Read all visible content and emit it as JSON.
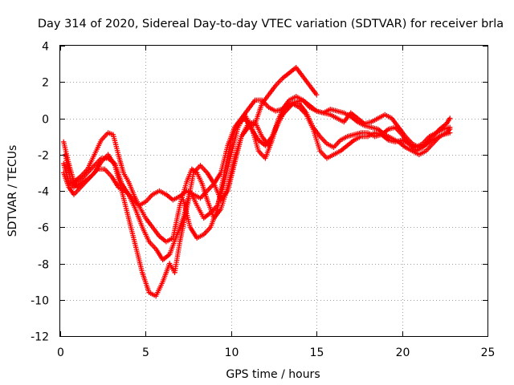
{
  "chart_data": {
    "type": "scatter",
    "title": "Day 314 of 2020, Sidereal Day-to-day VTEC variation (SDTVAR) for receiver brla",
    "xlabel": "GPS time / hours",
    "ylabel": "SDTVAR / TECUs",
    "xlim": [
      0,
      25
    ],
    "ylim": [
      -12,
      4
    ],
    "x_ticks": [
      0,
      5,
      10,
      15,
      20,
      25
    ],
    "x_tick_labels": [
      "0",
      "5",
      "10",
      "15",
      "20",
      "25"
    ],
    "y_ticks": [
      4,
      2,
      0,
      -2,
      -4,
      -6,
      -8,
      -10,
      -12
    ],
    "y_tick_labels": [
      "4",
      "2",
      "0",
      "-2",
      "-4",
      "-6",
      "-8",
      "-10",
      "-12"
    ],
    "grid": true,
    "marker": "+",
    "colors": {
      "series": "#ff0000",
      "grid": "#a0a0a0",
      "axis": "#000000"
    },
    "series": [
      {
        "x": [
          0.2,
          0.5,
          0.8,
          1.2,
          1.6,
          2.0,
          2.4,
          2.8,
          3.1,
          3.4,
          3.7,
          4.0,
          4.3,
          4.6,
          5.0,
          5.4,
          5.8,
          6.2,
          6.6,
          7.0,
          7.4,
          7.7,
          8.0,
          8.3,
          8.6,
          9.0,
          9.4,
          9.8,
          10.2,
          10.6,
          11.0,
          11.4,
          11.8,
          12.2,
          12.6,
          13.0,
          13.4,
          13.8,
          14.2,
          14.6,
          15.0
        ],
        "y": [
          -1.3,
          -2.5,
          -3.5,
          -3.2,
          -2.8,
          -2.0,
          -1.2,
          -0.8,
          -0.9,
          -2.0,
          -3.0,
          -3.5,
          -4.2,
          -4.8,
          -5.5,
          -6.0,
          -6.5,
          -6.8,
          -6.6,
          -4.8,
          -3.5,
          -2.8,
          -3.0,
          -3.6,
          -4.5,
          -5.5,
          -5.0,
          -3.8,
          -2.2,
          -1.0,
          -0.5,
          -0.3,
          0.8,
          1.3,
          1.8,
          2.2,
          2.5,
          2.8,
          2.3,
          1.8,
          1.3
        ]
      },
      {
        "x": [
          0.2,
          0.5,
          0.8,
          1.2,
          1.6,
          2.0,
          2.4,
          2.8,
          3.2,
          3.6,
          4.0,
          4.4,
          4.8,
          5.2,
          5.6,
          6.0,
          6.4,
          6.7,
          7.0,
          7.4,
          7.8,
          8.2,
          8.6,
          9.0,
          9.4,
          9.8,
          10.2,
          10.6,
          11.0,
          11.4,
          11.8,
          12.2,
          12.6,
          13.0,
          13.4,
          13.8,
          14.2,
          14.6,
          15.0,
          15.4,
          15.8,
          16.2,
          16.6,
          17.0,
          17.4,
          17.8,
          18.2,
          18.6,
          19.0,
          19.4,
          19.8,
          20.2,
          20.6,
          21.0,
          21.4,
          21.8,
          22.2,
          22.6,
          22.8
        ],
        "y": [
          -3.0,
          -3.8,
          -4.2,
          -3.8,
          -3.4,
          -3.0,
          -2.4,
          -2.0,
          -2.6,
          -4.0,
          -5.5,
          -7.0,
          -8.5,
          -9.6,
          -9.8,
          -9.0,
          -8.0,
          -8.5,
          -6.8,
          -5.0,
          -3.0,
          -2.6,
          -3.0,
          -3.6,
          -4.5,
          -4.0,
          -2.5,
          -1.0,
          -0.3,
          -0.2,
          -1.0,
          -1.5,
          -0.5,
          0.5,
          1.0,
          1.2,
          1.0,
          0.6,
          0.4,
          0.3,
          0.2,
          0.0,
          -0.2,
          0.3,
          0.0,
          -0.3,
          -0.2,
          0.0,
          0.2,
          0.0,
          -0.5,
          -1.0,
          -1.4,
          -1.6,
          -1.4,
          -1.0,
          -0.6,
          -0.3,
          0.0
        ]
      },
      {
        "x": [
          0.2,
          0.5,
          0.8,
          1.2,
          1.6,
          2.0,
          2.4,
          2.8,
          3.2,
          3.6,
          4.0,
          4.4,
          4.8,
          5.2,
          5.6,
          6.0,
          6.4,
          6.8,
          7.2,
          7.6,
          8.0,
          8.4,
          8.8,
          9.2,
          9.6,
          10.0,
          10.4,
          10.8,
          11.2,
          11.6,
          12.0,
          12.4,
          12.8,
          13.2,
          13.6,
          14.0,
          14.4,
          14.8,
          15.2,
          15.6,
          16.0,
          16.4,
          16.8,
          17.2,
          17.6,
          18.0,
          18.4,
          18.8,
          19.2,
          19.6,
          20.0,
          20.4,
          20.8,
          21.2,
          21.6,
          22.0,
          22.4,
          22.8
        ],
        "y": [
          -2.5,
          -3.5,
          -3.8,
          -3.4,
          -3.0,
          -2.6,
          -2.2,
          -2.2,
          -2.5,
          -3.6,
          -4.2,
          -5.0,
          -6.0,
          -6.8,
          -7.2,
          -7.8,
          -7.5,
          -6.5,
          -5.5,
          -4.0,
          -4.8,
          -5.5,
          -5.2,
          -4.8,
          -3.5,
          -2.0,
          -0.5,
          0.2,
          -0.5,
          -1.8,
          -2.2,
          -1.2,
          0.0,
          0.4,
          0.8,
          0.6,
          0.2,
          -0.6,
          -1.8,
          -2.2,
          -2.0,
          -1.8,
          -1.5,
          -1.2,
          -1.0,
          -1.0,
          -0.8,
          -0.9,
          -1.2,
          -1.3,
          -1.2,
          -1.4,
          -1.6,
          -1.4,
          -1.0,
          -0.8,
          -0.6,
          -0.5
        ]
      },
      {
        "x": [
          0.3,
          0.6,
          1.0,
          1.4,
          1.8,
          2.2,
          2.6,
          3.0,
          3.4,
          3.8,
          4.2,
          4.6,
          5.0,
          5.4,
          5.8,
          6.2,
          6.6,
          7.0,
          7.4,
          7.8,
          8.2,
          8.6,
          9.0,
          9.4,
          9.8,
          10.2,
          10.6,
          11.0,
          11.4,
          11.8,
          12.2,
          12.6,
          13.0,
          13.4,
          13.8,
          14.2,
          14.6,
          15.0,
          15.4,
          15.8,
          16.2,
          16.6,
          17.0,
          17.4,
          17.8,
          18.2,
          18.6,
          19.0,
          19.4,
          19.8,
          20.2,
          20.6,
          21.0,
          21.4,
          21.8,
          22.2,
          22.6,
          22.8
        ],
        "y": [
          -2.0,
          -3.4,
          -3.8,
          -3.5,
          -3.2,
          -2.8,
          -2.8,
          -3.2,
          -3.8,
          -4.0,
          -4.4,
          -4.8,
          -4.6,
          -4.2,
          -4.0,
          -4.2,
          -4.5,
          -4.3,
          -4.0,
          -4.2,
          -4.4,
          -4.0,
          -3.6,
          -3.0,
          -1.5,
          -0.5,
          0.0,
          0.5,
          1.0,
          1.0,
          0.6,
          0.4,
          0.5,
          0.8,
          0.9,
          1.0,
          0.7,
          0.4,
          0.3,
          0.5,
          0.4,
          0.3,
          0.1,
          -0.2,
          -0.4,
          -0.5,
          -0.6,
          -0.9,
          -1.1,
          -1.3,
          -1.6,
          -1.8,
          -2.0,
          -1.8,
          -1.4,
          -1.0,
          -0.8,
          -0.6
        ]
      },
      {
        "x": [
          7.2,
          7.6,
          8.0,
          8.4,
          8.8,
          9.2,
          9.6,
          10.0,
          10.4,
          10.8,
          11.2,
          11.6,
          12.0,
          12.4,
          12.8,
          13.2,
          13.6,
          14.0,
          14.4,
          14.8,
          15.2,
          15.6,
          16.0,
          16.4,
          16.8,
          17.2,
          17.6,
          18.0,
          18.4,
          18.8,
          19.2,
          19.6,
          20.0,
          20.4,
          20.8,
          21.2,
          21.6,
          22.0,
          22.4,
          22.8
        ],
        "y": [
          -4.5,
          -6.0,
          -6.6,
          -6.4,
          -6.0,
          -5.0,
          -3.0,
          -1.2,
          -0.3,
          0.0,
          -0.6,
          -1.2,
          -1.5,
          -1.0,
          -0.2,
          0.5,
          0.8,
          0.8,
          0.3,
          -0.5,
          -1.0,
          -1.4,
          -1.6,
          -1.2,
          -1.0,
          -0.9,
          -0.8,
          -0.8,
          -1.0,
          -0.9,
          -0.6,
          -0.5,
          -0.9,
          -1.4,
          -1.8,
          -1.6,
          -1.3,
          -1.1,
          -0.9,
          -0.8
        ]
      }
    ]
  }
}
